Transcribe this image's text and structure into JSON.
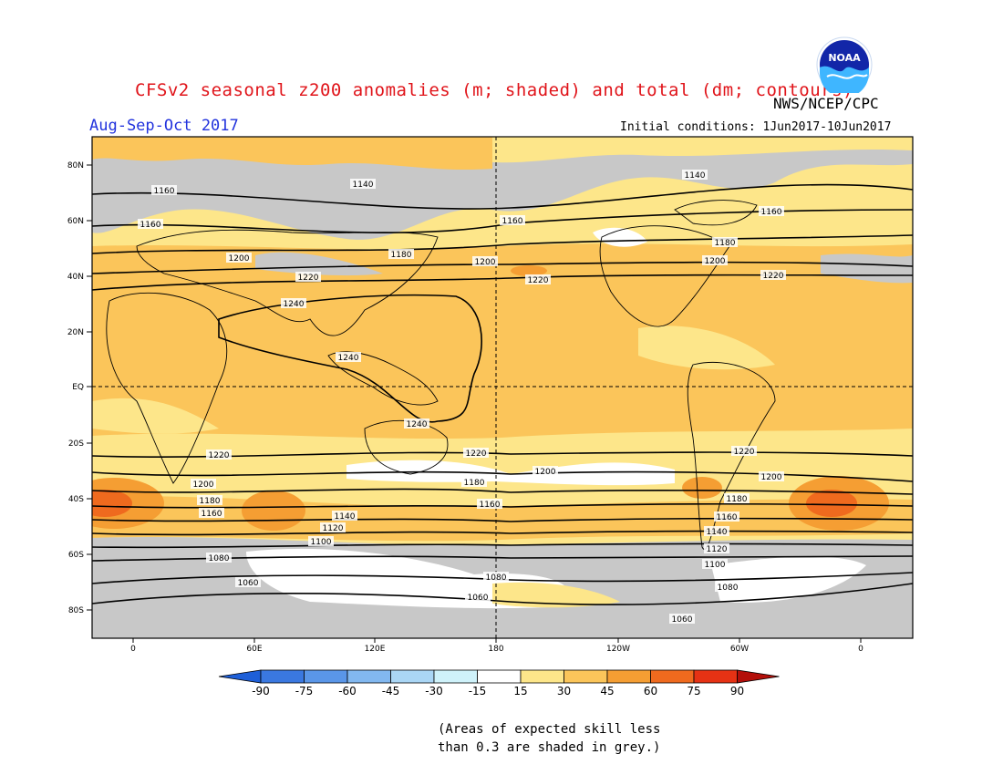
{
  "title": "CFSv2 seasonal z200 anomalies (m; shaded) and total (dm; contours)",
  "org": "NWS/NCEP/CPC",
  "logo_text": "NOAA",
  "period": "Aug-Sep-Oct 2017",
  "initial_conditions": "Initial conditions: 1Jun2017-10Jun2017",
  "lat_labels": [
    "80N",
    "60N",
    "40N",
    "20N",
    "EQ",
    "20S",
    "40S",
    "60S",
    "80S"
  ],
  "lon_labels": [
    "0",
    "60E",
    "120E",
    "180",
    "120W",
    "60W",
    "0"
  ],
  "contour_labels": [
    {
      "text": "1140",
      "lon": 130
    },
    {
      "text": "1160",
      "lon": 15
    },
    {
      "text": "1160",
      "lon": 185
    },
    {
      "text": "1140",
      "lon": -89
    },
    {
      "text": "1160",
      "lon": -47
    },
    {
      "text": "1160",
      "lon": 8
    },
    {
      "text": "1180",
      "lon": 127
    },
    {
      "text": "1200",
      "lon": 175
    },
    {
      "text": "1180",
      "lon": -72
    },
    {
      "text": "1200",
      "lon": -72
    },
    {
      "text": "1200",
      "lon": 40
    },
    {
      "text": "1220",
      "lon": 88
    },
    {
      "text": "1220",
      "lon": 200
    },
    {
      "text": "1220",
      "lon": -45
    },
    {
      "text": "1240",
      "lon": 80
    },
    {
      "text": "1240",
      "lon": 110
    },
    {
      "text": "1240",
      "lon": 140
    },
    {
      "text": "1220",
      "lon": 43
    },
    {
      "text": "1220",
      "lon": 174
    },
    {
      "text": "1220",
      "lon": -75
    },
    {
      "text": "1200",
      "lon": 187
    },
    {
      "text": "1200",
      "lon": -55
    },
    {
      "text": "1200",
      "lon": 35
    },
    {
      "text": "1180",
      "lon": 175
    },
    {
      "text": "1180",
      "lon": -70
    },
    {
      "text": "1180",
      "lon": 38
    },
    {
      "text": "1160",
      "lon": 177
    },
    {
      "text": "1160",
      "lon": -72
    },
    {
      "text": "1160",
      "lon": 38
    },
    {
      "text": "1140",
      "lon": 110
    },
    {
      "text": "1140",
      "lon": -72
    },
    {
      "text": "1120",
      "lon": 97
    },
    {
      "text": "1120",
      "lon": -72
    },
    {
      "text": "1100",
      "lon": 97
    },
    {
      "text": "1100",
      "lon": -72
    },
    {
      "text": "1080",
      "lon": 42
    },
    {
      "text": "1080",
      "lon": 175
    },
    {
      "text": "1080",
      "lon": -68
    },
    {
      "text": "1060",
      "lon": 57
    },
    {
      "text": "1060",
      "lon": 170
    },
    {
      "text": "1060",
      "lon": -90
    }
  ],
  "colorbar": {
    "ticks": [
      "-90",
      "-75",
      "-60",
      "-45",
      "-30",
      "-15",
      "15",
      "30",
      "45",
      "60",
      "75",
      "90"
    ],
    "colors": [
      "#1e5fd8",
      "#3a78e0",
      "#5a96e8",
      "#82b8f0",
      "#aad6f5",
      "#cff2fa",
      "#ffffff",
      "#fde68a",
      "#fbc55a",
      "#f59e33",
      "#ef6a1e",
      "#e63214",
      "#b30f0a"
    ]
  },
  "note_line1": "(Areas of expected skill less",
  "note_line2": "than 0.3 are shaded in grey.)"
}
